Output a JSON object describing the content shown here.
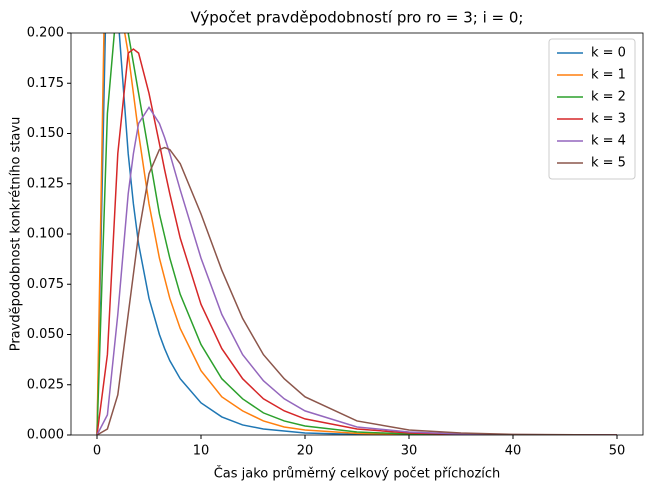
{
  "chart_data": {
    "type": "line",
    "title": "Výpočet pravděpodobností pro ro = 3; i = 0;",
    "x_label": "Čas jako průměrný celkový počet příchozích",
    "y_label": "Pravděpodobnost konkrétního stavu",
    "x": [
      0,
      1,
      2,
      3,
      3.5,
      4,
      5,
      6,
      6.5,
      7,
      8,
      10,
      12,
      14,
      16,
      18,
      20,
      25,
      30,
      35,
      40,
      50
    ],
    "series": [
      {
        "name": "k = 0",
        "color": "#1f77b4",
        "values": [
          0,
          0.25,
          0.21,
          0.14,
          0.115,
          0.095,
          0.068,
          0.05,
          0.043,
          0.037,
          0.028,
          0.016,
          0.009,
          0.005,
          0.003,
          0.002,
          0.001,
          0.0003,
          0,
          0,
          0,
          0
        ]
      },
      {
        "name": "k = 1",
        "color": "#ff7f0e",
        "values": [
          0,
          0.3,
          0.22,
          0.19,
          0.17,
          0.15,
          0.115,
          0.088,
          0.078,
          0.068,
          0.053,
          0.032,
          0.019,
          0.012,
          0.007,
          0.004,
          0.0025,
          0.0008,
          0.0002,
          0,
          0,
          0
        ]
      },
      {
        "name": "k = 2",
        "color": "#2ca02c",
        "values": [
          0,
          0.16,
          0.22,
          0.2,
          0.185,
          0.17,
          0.14,
          0.11,
          0.099,
          0.088,
          0.07,
          0.045,
          0.028,
          0.018,
          0.011,
          0.007,
          0.0045,
          0.0015,
          0.0005,
          0.0002,
          0,
          0
        ]
      },
      {
        "name": "k = 3",
        "color": "#d62728",
        "values": [
          0,
          0.04,
          0.14,
          0.19,
          0.192,
          0.19,
          0.17,
          0.145,
          0.132,
          0.12,
          0.098,
          0.065,
          0.043,
          0.028,
          0.018,
          0.012,
          0.008,
          0.003,
          0.001,
          0.0004,
          0.0001,
          0
        ]
      },
      {
        "name": "k = 4",
        "color": "#9467bd",
        "values": [
          0,
          0.01,
          0.06,
          0.12,
          0.14,
          0.155,
          0.163,
          0.155,
          0.148,
          0.14,
          0.122,
          0.088,
          0.06,
          0.04,
          0.027,
          0.018,
          0.012,
          0.004,
          0.0015,
          0.0005,
          0.0002,
          0
        ]
      },
      {
        "name": "k = 5",
        "color": "#8c564b",
        "values": [
          0,
          0.003,
          0.02,
          0.06,
          0.08,
          0.1,
          0.13,
          0.142,
          0.143,
          0.142,
          0.135,
          0.11,
          0.082,
          0.058,
          0.04,
          0.028,
          0.019,
          0.007,
          0.0025,
          0.001,
          0.0003,
          0
        ]
      }
    ],
    "xlim": [
      -2.5,
      52.5
    ],
    "xticks": [
      0,
      10,
      20,
      30,
      40,
      50
    ],
    "ylim": [
      0,
      0.2
    ],
    "yticks": [
      {
        "value": 0,
        "label": "0.000"
      },
      {
        "value": 0.025,
        "label": "0.025"
      },
      {
        "value": 0.05,
        "label": "0.050"
      },
      {
        "value": 0.075,
        "label": "0.075"
      },
      {
        "value": 0.1,
        "label": "0.100"
      },
      {
        "value": 0.125,
        "label": "0.125"
      },
      {
        "value": 0.15,
        "label": "0.150"
      },
      {
        "value": 0.175,
        "label": "0.175"
      },
      {
        "value": 0.2,
        "label": "0.200"
      }
    ],
    "grid": false,
    "legend": "upper right"
  }
}
